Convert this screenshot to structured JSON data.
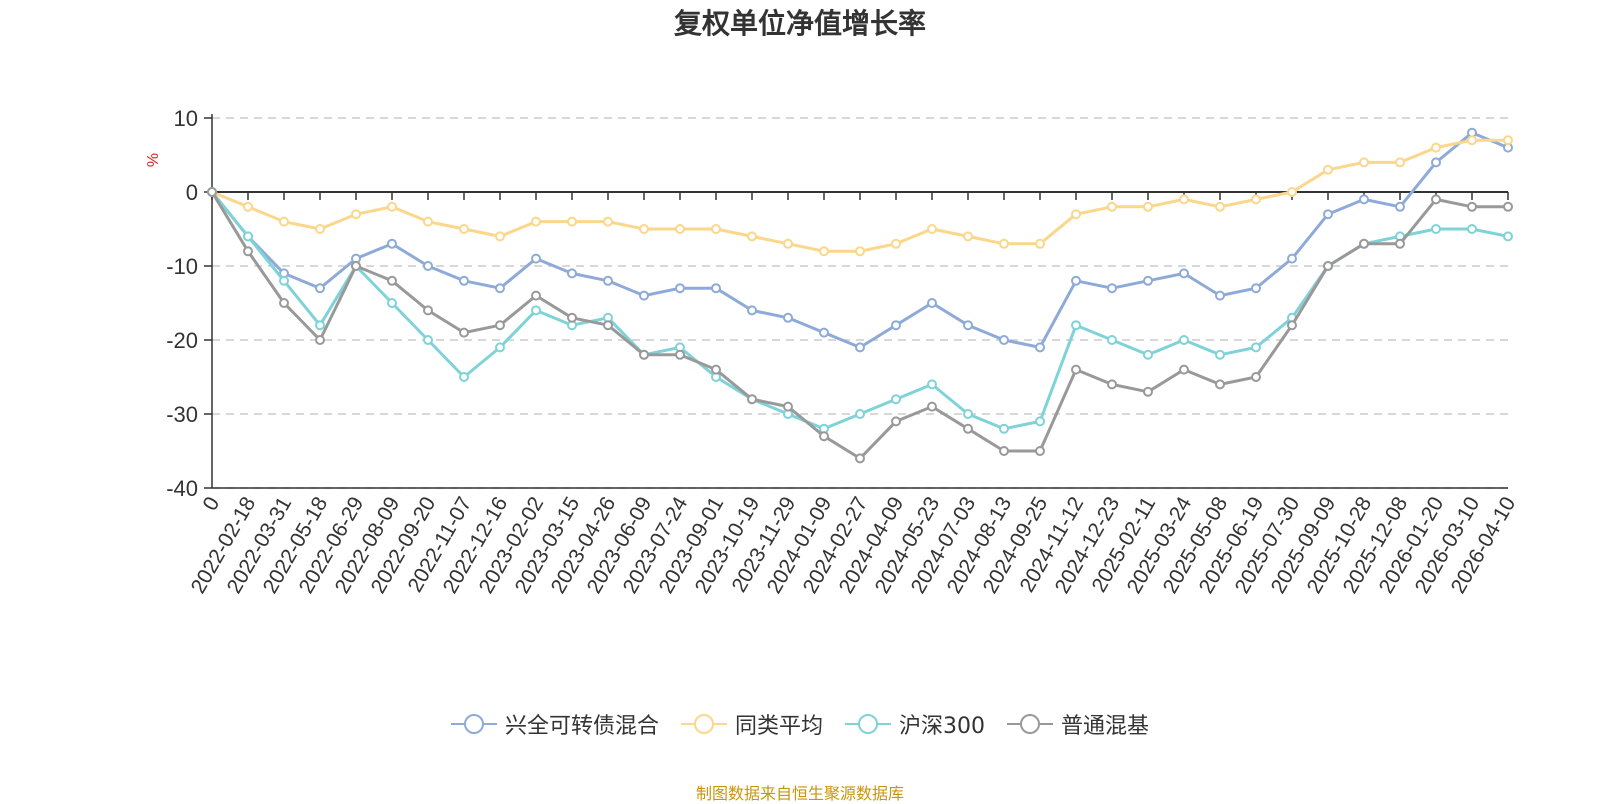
{
  "title": "复权单位净值增长率",
  "source_note": "制图数据来自恒生聚源数据库",
  "chart_data": {
    "type": "line",
    "title": "复权单位净值增长率",
    "ylabel": "%",
    "ylim": [
      -40,
      10
    ],
    "yticks": [
      10,
      0,
      -10,
      -20,
      -30,
      -40
    ],
    "grid": true,
    "legend_position": "bottom",
    "categories": [
      "0",
      "2022-02-18",
      "2022-03-31",
      "2022-05-18",
      "2022-06-29",
      "2022-08-09",
      "2022-09-20",
      "2022-11-07",
      "2022-12-16",
      "2023-02-02",
      "2023-03-15",
      "2023-04-26",
      "2023-06-09",
      "2023-07-24",
      "2023-09-01",
      "2023-10-19",
      "2023-11-29",
      "2024-01-09",
      "2024-02-27",
      "2024-04-09",
      "2024-05-23",
      "2024-07-03",
      "2024-08-13",
      "2024-09-25",
      "2024-11-12",
      "2024-12-23",
      "2025-02-11",
      "2025-03-24",
      "2025-05-08",
      "2025-06-19",
      "2025-07-30",
      "2025-09-09",
      "2025-10-28",
      "2025-12-08",
      "2026-01-20",
      "2026-03-10",
      "2026-04-10"
    ],
    "series": [
      {
        "name": "兴全可转债混合",
        "color": "#8eaad8",
        "values": [
          0,
          -6,
          -11,
          -13,
          -9,
          -7,
          -10,
          -12,
          -13,
          -9,
          -11,
          -12,
          -14,
          -13,
          -13,
          -16,
          -17,
          -19,
          -21,
          -18,
          -15,
          -18,
          -20,
          -21,
          -12,
          -13,
          -12,
          -11,
          -14,
          -13,
          -9,
          -3,
          -1,
          -2,
          4,
          8,
          6
        ]
      },
      {
        "name": "同类平均",
        "color": "#fad78a",
        "values": [
          0,
          -2,
          -4,
          -5,
          -3,
          -2,
          -4,
          -5,
          -6,
          -4,
          -4,
          -4,
          -5,
          -5,
          -5,
          -6,
          -7,
          -8,
          -8,
          -7,
          -5,
          -6,
          -7,
          -7,
          -3,
          -2,
          -2,
          -1,
          -2,
          -1,
          0,
          3,
          4,
          4,
          6,
          7,
          7
        ]
      },
      {
        "name": "沪深300",
        "color": "#7fd3d8",
        "values": [
          0,
          -6,
          -12,
          -18,
          -10,
          -15,
          -20,
          -25,
          -21,
          -16,
          -18,
          -17,
          -22,
          -21,
          -25,
          -28,
          -30,
          -32,
          -30,
          -28,
          -26,
          -30,
          -32,
          -31,
          -18,
          -20,
          -22,
          -20,
          -22,
          -21,
          -17,
          -10,
          -7,
          -6,
          -5,
          -5,
          -6
        ]
      },
      {
        "name": "普通混基",
        "color": "#999999",
        "values": [
          0,
          -8,
          -15,
          -20,
          -10,
          -12,
          -16,
          -19,
          -18,
          -14,
          -17,
          -18,
          -22,
          -22,
          -24,
          -28,
          -29,
          -33,
          -36,
          -31,
          -29,
          -32,
          -35,
          -35,
          -24,
          -26,
          -27,
          -24,
          -26,
          -25,
          -18,
          -10,
          -7,
          -7,
          -1,
          -2,
          -2
        ]
      }
    ]
  }
}
